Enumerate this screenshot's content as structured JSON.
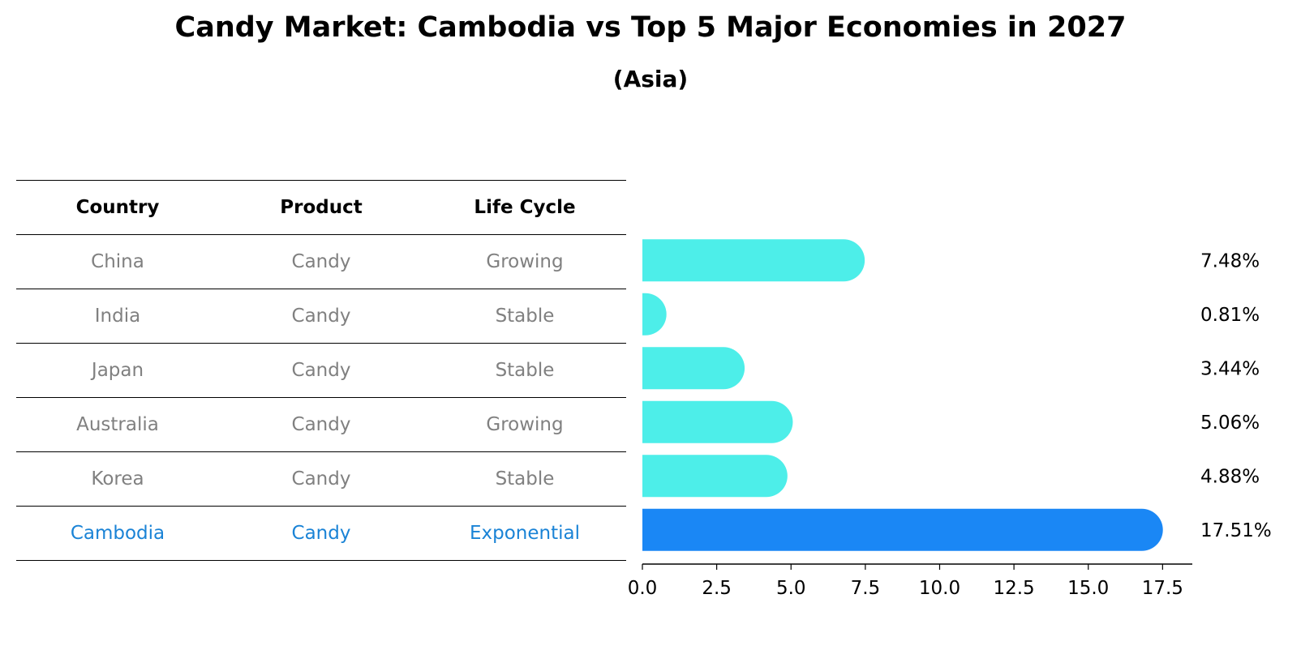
{
  "title": "Candy Market: Cambodia vs Top 5 Major Economies in 2027",
  "subtitle": "(Asia)",
  "table": {
    "headers": [
      "Country",
      "Product",
      "Life Cycle"
    ],
    "rows": [
      {
        "country": "China",
        "product": "Candy",
        "life_cycle": "Growing"
      },
      {
        "country": "India",
        "product": "Candy",
        "life_cycle": "Stable"
      },
      {
        "country": "Japan",
        "product": "Candy",
        "life_cycle": "Stable"
      },
      {
        "country": "Australia",
        "product": "Candy",
        "life_cycle": "Growing"
      },
      {
        "country": "Korea",
        "product": "Candy",
        "life_cycle": "Stable"
      },
      {
        "country": "Cambodia",
        "product": "Candy",
        "life_cycle": "Exponential"
      }
    ]
  },
  "chart_data": {
    "type": "bar",
    "orientation": "horizontal",
    "categories": [
      "China",
      "India",
      "Japan",
      "Australia",
      "Korea",
      "Cambodia"
    ],
    "values": [
      7.48,
      0.81,
      3.44,
      5.06,
      4.88,
      17.51
    ],
    "value_labels": [
      "7.48%",
      "0.81%",
      "3.44%",
      "5.06%",
      "4.88%",
      "17.51%"
    ],
    "xlim": [
      0,
      18.5
    ],
    "xticks": [
      0.0,
      2.5,
      5.0,
      7.5,
      10.0,
      12.5,
      15.0,
      17.5
    ],
    "xtick_labels": [
      "0.0",
      "2.5",
      "5.0",
      "7.5",
      "10.0",
      "12.5",
      "15.0",
      "17.5"
    ],
    "highlight_index": 5,
    "grid": false,
    "colors": {
      "default": "#4deee9",
      "highlight": "#1a87f5",
      "text_gray": "#808080",
      "text_highlight": "#1a83d6"
    }
  }
}
